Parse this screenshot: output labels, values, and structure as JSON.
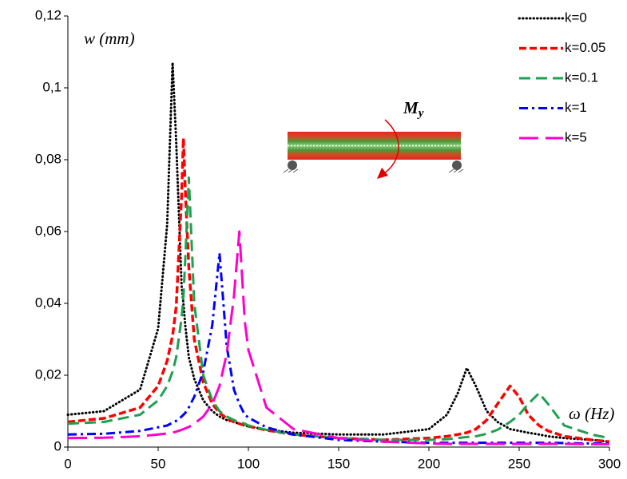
{
  "chart_data": {
    "type": "line",
    "x_label": "ω (Hz)",
    "y_label": "w (mm)",
    "annotation": {
      "main": "M",
      "sub": "y"
    },
    "x": [
      0,
      20,
      40,
      50,
      55,
      58,
      60,
      63,
      64,
      65,
      67,
      70,
      75,
      80,
      84,
      88,
      92,
      95,
      98,
      100,
      110,
      125,
      150,
      175,
      200,
      210,
      216,
      221,
      226,
      232,
      238,
      245,
      250,
      255,
      261,
      266,
      275,
      290,
      300
    ],
    "series": [
      {
        "name": "k=0",
        "color": "#000000",
        "style": "dotted",
        "values": [
          0.009,
          0.01,
          0.016,
          0.033,
          0.062,
          0.107,
          0.085,
          0.045,
          0.04,
          0.034,
          0.025,
          0.019,
          0.013,
          0.01,
          0.0085,
          0.0075,
          0.007,
          0.0065,
          0.006,
          0.0058,
          0.0048,
          0.004,
          0.0035,
          0.0035,
          0.005,
          0.009,
          0.015,
          0.022,
          0.017,
          0.01,
          0.007,
          0.005,
          0.0045,
          0.004,
          0.0035,
          0.003,
          0.0025,
          0.002,
          0.0015
        ]
      },
      {
        "name": "k=0.05",
        "color": "#ff0000",
        "style": "dashed",
        "values": [
          0.007,
          0.008,
          0.011,
          0.017,
          0.024,
          0.031,
          0.039,
          0.07,
          0.086,
          0.072,
          0.05,
          0.03,
          0.018,
          0.012,
          0.0095,
          0.008,
          0.007,
          0.0065,
          0.006,
          0.0058,
          0.0047,
          0.0035,
          0.0025,
          0.002,
          0.0025,
          0.003,
          0.0035,
          0.004,
          0.005,
          0.0075,
          0.012,
          0.017,
          0.014,
          0.009,
          0.006,
          0.0045,
          0.003,
          0.002,
          0.0015
        ]
      },
      {
        "name": "k=0.1",
        "color": "#1fa050",
        "style": "long-dashed",
        "values": [
          0.0065,
          0.007,
          0.009,
          0.013,
          0.017,
          0.021,
          0.025,
          0.036,
          0.042,
          0.052,
          0.075,
          0.04,
          0.02,
          0.013,
          0.01,
          0.0085,
          0.0075,
          0.007,
          0.0065,
          0.006,
          0.0048,
          0.0035,
          0.0025,
          0.002,
          0.002,
          0.0022,
          0.0025,
          0.0028,
          0.003,
          0.0037,
          0.0048,
          0.007,
          0.009,
          0.012,
          0.015,
          0.012,
          0.006,
          0.0035,
          0.0025
        ]
      },
      {
        "name": "k=1",
        "color": "#0000ff",
        "style": "dash-dot",
        "values": [
          0.0035,
          0.0037,
          0.0045,
          0.0055,
          0.006,
          0.0068,
          0.0073,
          0.0085,
          0.009,
          0.0095,
          0.011,
          0.014,
          0.021,
          0.034,
          0.054,
          0.028,
          0.016,
          0.012,
          0.009,
          0.0082,
          0.0055,
          0.0035,
          0.002,
          0.0015,
          0.0012,
          0.0012,
          0.0012,
          0.0012,
          0.0012,
          0.0012,
          0.0012,
          0.0012,
          0.0012,
          0.0012,
          0.0012,
          0.0012,
          0.0011,
          0.001,
          0.001
        ]
      },
      {
        "name": "k=5",
        "color": "#ff00cc",
        "style": "extra-long-dashed",
        "values": [
          0.0025,
          0.0026,
          0.003,
          0.0035,
          0.0038,
          0.004,
          0.0043,
          0.0048,
          0.005,
          0.0052,
          0.0056,
          0.0065,
          0.0085,
          0.012,
          0.017,
          0.026,
          0.042,
          0.06,
          0.035,
          0.027,
          0.011,
          0.005,
          0.0025,
          0.0015,
          0.001,
          0.0009,
          0.0009,
          0.0009,
          0.0009,
          0.0009,
          0.0009,
          0.0009,
          0.0009,
          0.0009,
          0.0009,
          0.0009,
          0.0009,
          0.0008,
          0.0008
        ]
      }
    ],
    "xlim": [
      0,
      300
    ],
    "xticks": [
      0,
      50,
      100,
      150,
      200,
      250,
      300
    ],
    "ylim": [
      0,
      0.12
    ],
    "yticks": [
      0,
      {
        "value": 0.02,
        "label": "0,02"
      },
      {
        "value": 0.04,
        "label": "0,04"
      },
      {
        "value": 0.06,
        "label": "0,06"
      },
      {
        "value": 0.08,
        "label": "0,08"
      },
      {
        "value": 0.1,
        "label": "0,1"
      },
      {
        "value": 0.12,
        "label": "0,12"
      }
    ],
    "grid": false,
    "legend": "top-right"
  }
}
